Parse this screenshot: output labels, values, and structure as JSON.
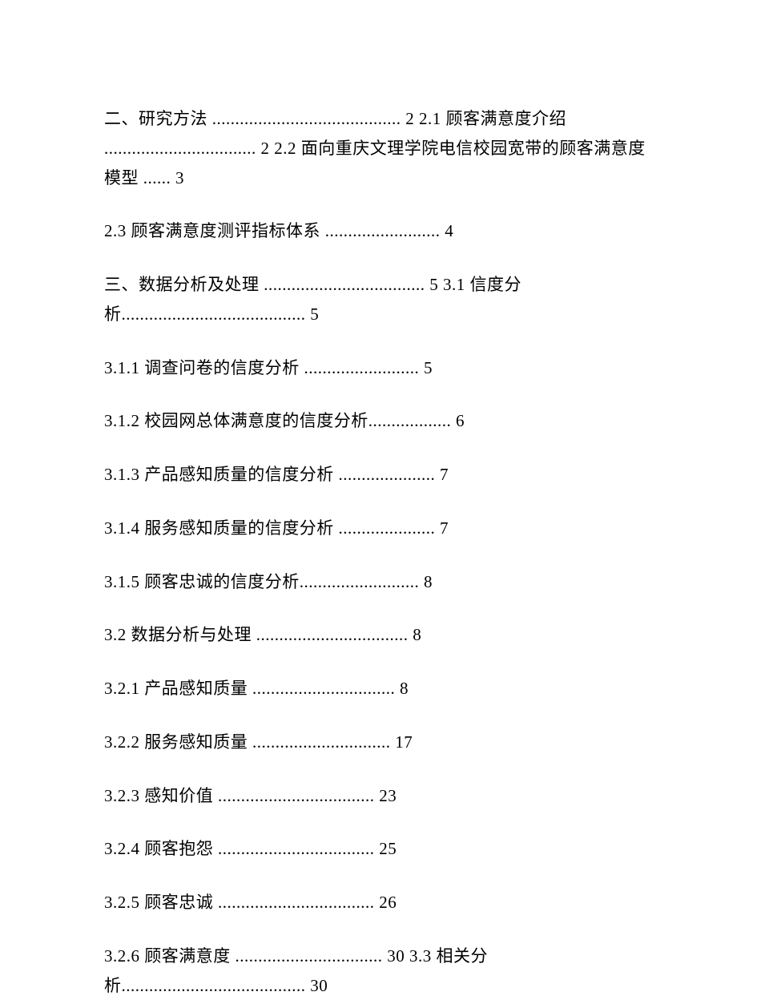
{
  "entries": [
    "二、研究方法 ......................................... 2 2.1 顾客满意度介绍 ................................. 2 2.2 面向重庆文理学院电信校园宽带的顾客满意度模型 ...... 3",
    "2.3 顾客满意度测评指标体系 ......................... 4",
    "三、数据分析及处理 ................................... 5 3.1 信度分析........................................ 5",
    "3.1.1 调查问卷的信度分析 ......................... 5",
    "3.1.2 校园网总体满意度的信度分析.................. 6",
    "3.1.3 产品感知质量的信度分析 ..................... 7",
    "3.1.4 服务感知质量的信度分析 ..................... 7",
    "3.1.5 顾客忠诚的信度分析.......................... 8",
    "3.2 数据分析与处理 ................................. 8",
    "3.2.1 产品感知质量 ............................... 8",
    "3.2.2 服务感知质量 .............................. 17",
    "3.2.3 感知价值 .................................. 23",
    "3.2.4 顾客抱怨 .................................. 25",
    "3.2.5 顾客忠诚 .................................. 26",
    "3.2.6 顾客满意度 ................................ 30 3.3 相关分析........................................ 30"
  ]
}
